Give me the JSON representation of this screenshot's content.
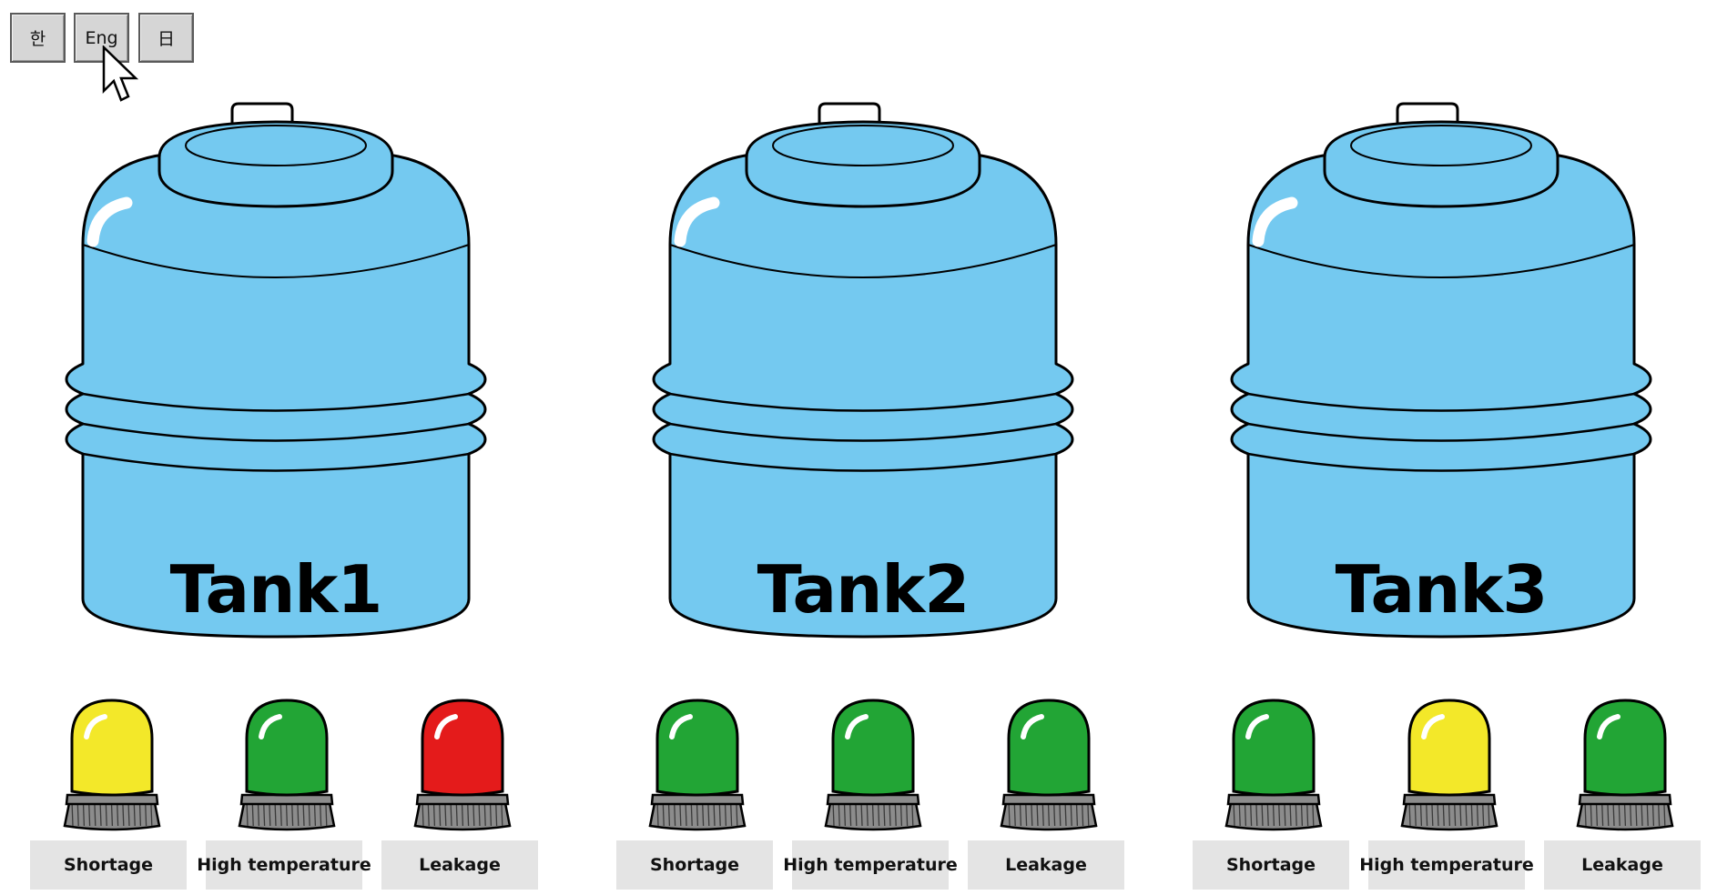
{
  "language_buttons": [
    {
      "label": "한"
    },
    {
      "label": "Eng"
    },
    {
      "label": "日"
    }
  ],
  "tanks": [
    {
      "name": "Tank1",
      "alarms": [
        {
          "label": "Shortage",
          "status_color": "#f3e829"
        },
        {
          "label": "High temperature",
          "status_color": "#22a535"
        },
        {
          "label": "Leakage",
          "status_color": "#e41b1b"
        }
      ]
    },
    {
      "name": "Tank2",
      "alarms": [
        {
          "label": "Shortage",
          "status_color": "#22a535"
        },
        {
          "label": "High temperature",
          "status_color": "#22a535"
        },
        {
          "label": "Leakage",
          "status_color": "#22a535"
        }
      ]
    },
    {
      "name": "Tank3",
      "alarms": [
        {
          "label": "Shortage",
          "status_color": "#22a535"
        },
        {
          "label": "High temperature",
          "status_color": "#f3e829"
        },
        {
          "label": "Leakage",
          "status_color": "#22a535"
        }
      ]
    }
  ],
  "colors": {
    "tank_fill": "#74c9f0",
    "lamp_base": "#8c8c8c",
    "label_bg": "#e4e4e4",
    "yellow": "#f3e829",
    "green": "#22a535",
    "red": "#e41b1b"
  }
}
